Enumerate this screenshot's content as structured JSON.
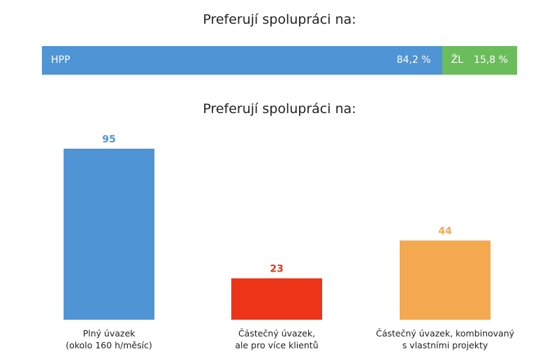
{
  "titles": {
    "top": "Preferují spolupráci na:",
    "bottom": "Preferují spolupráci na:"
  },
  "chart_data": [
    {
      "type": "bar",
      "orientation": "horizontal-stacked",
      "title": "Preferují spolupráci na:",
      "series": [
        {
          "name": "HPP",
          "value": 84.2,
          "label": "84,2 %",
          "color": "#4f94d4"
        },
        {
          "name": "ŽL",
          "value": 15.8,
          "label": "15,8 %",
          "color": "#6bbd5b"
        }
      ],
      "xlim": [
        0,
        100
      ]
    },
    {
      "type": "bar",
      "title": "Preferují spolupráci na:",
      "categories": [
        [
          "Plný úvazek",
          "(okolo 160 h/měsíc)"
        ],
        [
          "Částečný úvazek,",
          "ale pro více klientů"
        ],
        [
          "Částečný úvazek, kombinovaný",
          "s vlastními projekty"
        ]
      ],
      "values": [
        95,
        23,
        44
      ],
      "colors": [
        "#4f94d4",
        "#ec3418",
        "#f4a84f"
      ],
      "ylim": [
        0,
        95
      ],
      "grid": false
    }
  ]
}
